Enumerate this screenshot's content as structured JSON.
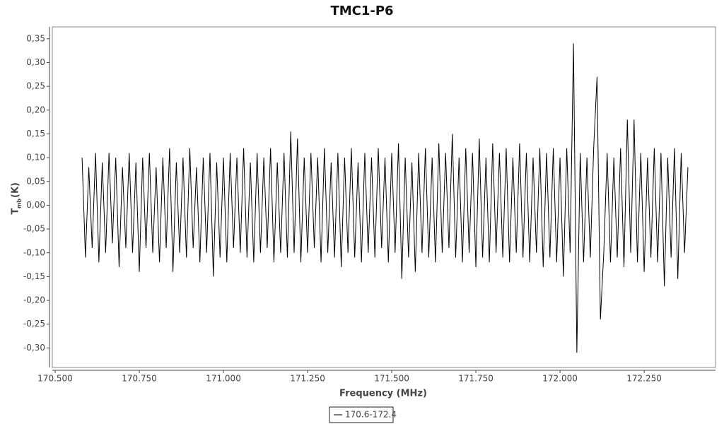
{
  "chart_data": {
    "type": "line",
    "title": "TMC1-P6",
    "xlabel": "Frequency (MHz)",
    "ylabel": "T",
    "ylabel_sub": "mb",
    "ylabel_unit": "(K)",
    "xlim": [
      170.4916,
      172.462
    ],
    "ylim": [
      -0.341,
      0.375
    ],
    "xticks": [
      {
        "value": 170.5,
        "label": "170.500"
      },
      {
        "value": 170.75,
        "label": "170.750"
      },
      {
        "value": 171,
        "label": "171.000"
      },
      {
        "value": 171.25,
        "label": "171.250"
      },
      {
        "value": 171.5,
        "label": "171.500"
      },
      {
        "value": 171.75,
        "label": "171.750"
      },
      {
        "value": 172,
        "label": "172.000"
      },
      {
        "value": 172.25,
        "label": "172.250"
      }
    ],
    "yticks": [
      {
        "value": -0.3,
        "label": "-0,30"
      },
      {
        "value": -0.25,
        "label": "-0,25"
      },
      {
        "value": -0.2,
        "label": "-0,20"
      },
      {
        "value": -0.15,
        "label": "-0,15"
      },
      {
        "value": -0.1,
        "label": "-0,10"
      },
      {
        "value": -0.05,
        "label": "-0,05"
      },
      {
        "value": 0,
        "label": "0,00"
      },
      {
        "value": 0.05,
        "label": "0,05"
      },
      {
        "value": 0.1,
        "label": "0,10"
      },
      {
        "value": 0.15,
        "label": "0,15"
      },
      {
        "value": 0.2,
        "label": "0,20"
      },
      {
        "value": 0.25,
        "label": "0,25"
      },
      {
        "value": 0.3,
        "label": "0,30"
      },
      {
        "value": 0.35,
        "label": "0,35"
      }
    ],
    "x": [
      170.58,
      170.59,
      170.6,
      170.61,
      170.62,
      170.63,
      170.64,
      170.65,
      170.66,
      170.67,
      170.68,
      170.69,
      170.7,
      170.71,
      170.72,
      170.73,
      170.74,
      170.75,
      170.76,
      170.77,
      170.78,
      170.79,
      170.8,
      170.81,
      170.82,
      170.83,
      170.84,
      170.85,
      170.86,
      170.87,
      170.88,
      170.89,
      170.9,
      170.91,
      170.92,
      170.93,
      170.94,
      170.95,
      170.96,
      170.97,
      170.98,
      170.99,
      171,
      171.01,
      171.02,
      171.03,
      171.04,
      171.05,
      171.06,
      171.07,
      171.08,
      171.09,
      171.1,
      171.11,
      171.12,
      171.13,
      171.14,
      171.15,
      171.16,
      171.17,
      171.18,
      171.19,
      171.2,
      171.21,
      171.22,
      171.23,
      171.24,
      171.25,
      171.26,
      171.27,
      171.28,
      171.29,
      171.3,
      171.31,
      171.32,
      171.33,
      171.34,
      171.35,
      171.36,
      171.37,
      171.38,
      171.39,
      171.4,
      171.41,
      171.42,
      171.43,
      171.44,
      171.45,
      171.46,
      171.47,
      171.48,
      171.49,
      171.5,
      171.51,
      171.52,
      171.53,
      171.54,
      171.55,
      171.56,
      171.57,
      171.58,
      171.59,
      171.6,
      171.61,
      171.62,
      171.63,
      171.64,
      171.65,
      171.66,
      171.67,
      171.68,
      171.69,
      171.7,
      171.71,
      171.72,
      171.73,
      171.74,
      171.75,
      171.76,
      171.77,
      171.78,
      171.79,
      171.8,
      171.81,
      171.82,
      171.83,
      171.84,
      171.85,
      171.86,
      171.87,
      171.88,
      171.89,
      171.9,
      171.91,
      171.92,
      171.93,
      171.94,
      171.95,
      171.96,
      171.97,
      171.98,
      171.99,
      172,
      172.01,
      172.02,
      172.03,
      172.04,
      172.05,
      172.06,
      172.07,
      172.08,
      172.09,
      172.1,
      172.11,
      172.12,
      172.13,
      172.14,
      172.15,
      172.16,
      172.17,
      172.18,
      172.19,
      172.2,
      172.21,
      172.22,
      172.23,
      172.24,
      172.25,
      172.26,
      172.27,
      172.28,
      172.29,
      172.3,
      172.31,
      172.32,
      172.33,
      172.34,
      172.35,
      172.36,
      172.37,
      172.38
    ],
    "series": [
      {
        "name": "170.6-172.4",
        "color": "#000000",
        "values": [
          0.1,
          -0.11,
          0.08,
          -0.09,
          0.11,
          -0.12,
          0.09,
          -0.1,
          0.11,
          -0.08,
          0.1,
          -0.13,
          0.08,
          -0.09,
          0.11,
          -0.1,
          0.09,
          -0.14,
          0.1,
          -0.09,
          0.11,
          -0.1,
          0.08,
          -0.12,
          0.1,
          -0.09,
          0.12,
          -0.14,
          0.09,
          -0.1,
          0.1,
          -0.11,
          0.12,
          -0.09,
          0.08,
          -0.12,
          0.1,
          -0.1,
          0.11,
          -0.15,
          0.09,
          -0.11,
          0.1,
          -0.12,
          0.11,
          -0.09,
          0.1,
          -0.1,
          0.12,
          -0.11,
          0.09,
          -0.12,
          0.11,
          -0.1,
          0.1,
          -0.09,
          0.12,
          -0.12,
          0.09,
          -0.1,
          0.11,
          -0.11,
          0.155,
          -0.1,
          0.14,
          -0.12,
          0.1,
          -0.1,
          0.11,
          -0.09,
          0.1,
          -0.12,
          0.12,
          -0.1,
          0.09,
          -0.11,
          0.11,
          -0.13,
          0.1,
          -0.1,
          0.12,
          -0.11,
          0.09,
          -0.12,
          0.11,
          -0.1,
          0.1,
          -0.11,
          0.12,
          -0.09,
          0.1,
          -0.12,
          0.11,
          -0.1,
          0.13,
          -0.155,
          0.1,
          -0.11,
          0.09,
          -0.14,
          0.11,
          -0.1,
          0.12,
          -0.11,
          0.1,
          -0.12,
          0.13,
          -0.1,
          0.11,
          -0.09,
          0.15,
          -0.11,
          0.1,
          -0.12,
          0.12,
          -0.1,
          0.11,
          -0.13,
          0.14,
          -0.11,
          0.1,
          -0.12,
          0.13,
          -0.1,
          0.11,
          -0.11,
          0.12,
          -0.12,
          0.1,
          -0.1,
          0.13,
          -0.11,
          0.11,
          -0.12,
          0.1,
          -0.1,
          0.12,
          -0.13,
          0.11,
          -0.11,
          0.12,
          -0.12,
          0.1,
          -0.15,
          0.12,
          -0.1,
          0.34,
          -0.31,
          0.11,
          -0.12,
          0.1,
          -0.11,
          0.12,
          0.27,
          -0.24,
          -0.1,
          0.11,
          -0.12,
          0.1,
          -0.11,
          0.12,
          -0.13,
          0.18,
          -0.1,
          0.18,
          -0.12,
          0.11,
          -0.14,
          0.1,
          -0.11,
          0.12,
          -0.12,
          0.11,
          -0.17,
          0.1,
          -0.11,
          0.12,
          -0.155,
          0.11,
          -0.1,
          0.08
        ]
      }
    ]
  }
}
